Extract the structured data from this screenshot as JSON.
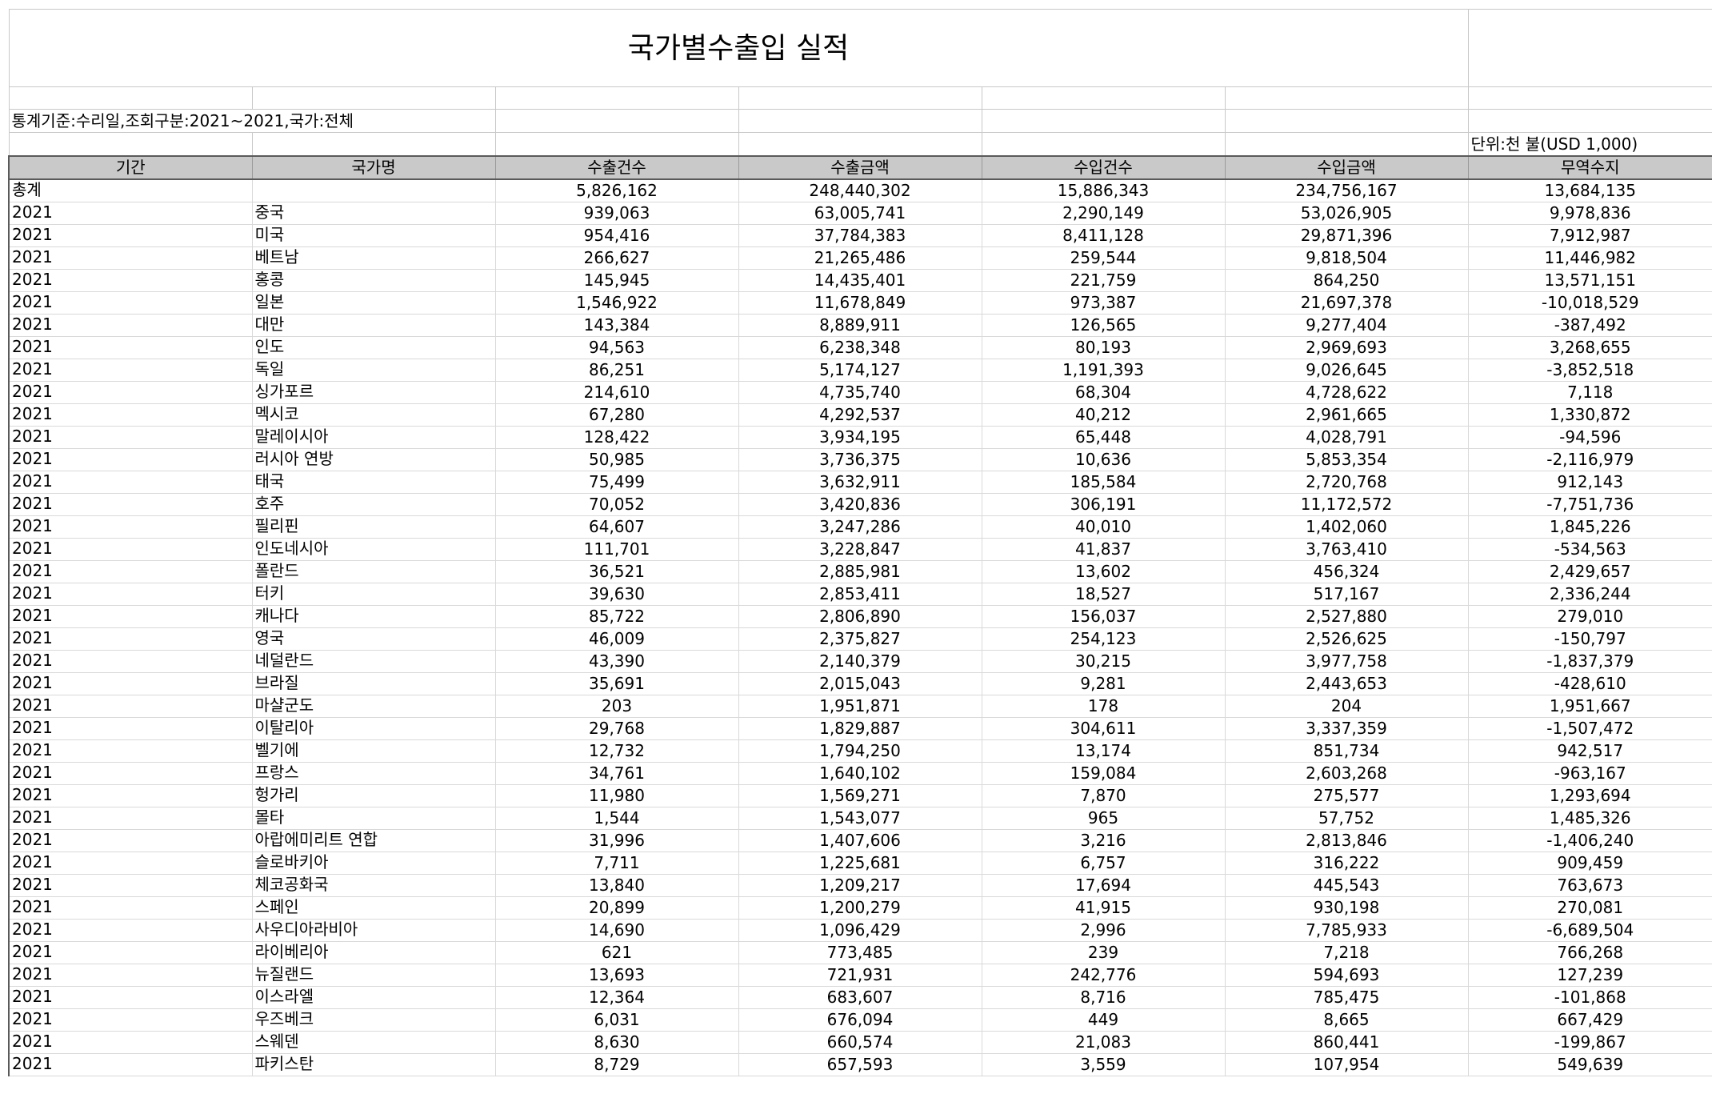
{
  "title": "국가별수출입 실적",
  "basis": "통계기준:수리일,조회구분:2021~2021,국가:전체",
  "unit": "단위:천 불(USD 1,000)",
  "columns": [
    "기간",
    "국가명",
    "수출건수",
    "수출금액",
    "수입건수",
    "수입금액",
    "무역수지"
  ],
  "rows": [
    [
      "총계",
      "",
      "5,826,162",
      "248,440,302",
      "15,886,343",
      "234,756,167",
      "13,684,135"
    ],
    [
      "2021",
      "중국",
      "939,063",
      "63,005,741",
      "2,290,149",
      "53,026,905",
      "9,978,836"
    ],
    [
      "2021",
      "미국",
      "954,416",
      "37,784,383",
      "8,411,128",
      "29,871,396",
      "7,912,987"
    ],
    [
      "2021",
      "베트남",
      "266,627",
      "21,265,486",
      "259,544",
      "9,818,504",
      "11,446,982"
    ],
    [
      "2021",
      "홍콩",
      "145,945",
      "14,435,401",
      "221,759",
      "864,250",
      "13,571,151"
    ],
    [
      "2021",
      "일본",
      "1,546,922",
      "11,678,849",
      "973,387",
      "21,697,378",
      "-10,018,529"
    ],
    [
      "2021",
      "대만",
      "143,384",
      "8,889,911",
      "126,565",
      "9,277,404",
      "-387,492"
    ],
    [
      "2021",
      "인도",
      "94,563",
      "6,238,348",
      "80,193",
      "2,969,693",
      "3,268,655"
    ],
    [
      "2021",
      "독일",
      "86,251",
      "5,174,127",
      "1,191,393",
      "9,026,645",
      "-3,852,518"
    ],
    [
      "2021",
      "싱가포르",
      "214,610",
      "4,735,740",
      "68,304",
      "4,728,622",
      "7,118"
    ],
    [
      "2021",
      "멕시코",
      "67,280",
      "4,292,537",
      "40,212",
      "2,961,665",
      "1,330,872"
    ],
    [
      "2021",
      "말레이시아",
      "128,422",
      "3,934,195",
      "65,448",
      "4,028,791",
      "-94,596"
    ],
    [
      "2021",
      "러시아 연방",
      "50,985",
      "3,736,375",
      "10,636",
      "5,853,354",
      "-2,116,979"
    ],
    [
      "2021",
      "태국",
      "75,499",
      "3,632,911",
      "185,584",
      "2,720,768",
      "912,143"
    ],
    [
      "2021",
      "호주",
      "70,052",
      "3,420,836",
      "306,191",
      "11,172,572",
      "-7,751,736"
    ],
    [
      "2021",
      "필리핀",
      "64,607",
      "3,247,286",
      "40,010",
      "1,402,060",
      "1,845,226"
    ],
    [
      "2021",
      "인도네시아",
      "111,701",
      "3,228,847",
      "41,837",
      "3,763,410",
      "-534,563"
    ],
    [
      "2021",
      "폴란드",
      "36,521",
      "2,885,981",
      "13,602",
      "456,324",
      "2,429,657"
    ],
    [
      "2021",
      "터키",
      "39,630",
      "2,853,411",
      "18,527",
      "517,167",
      "2,336,244"
    ],
    [
      "2021",
      "캐나다",
      "85,722",
      "2,806,890",
      "156,037",
      "2,527,880",
      "279,010"
    ],
    [
      "2021",
      "영국",
      "46,009",
      "2,375,827",
      "254,123",
      "2,526,625",
      "-150,797"
    ],
    [
      "2021",
      "네덜란드",
      "43,390",
      "2,140,379",
      "30,215",
      "3,977,758",
      "-1,837,379"
    ],
    [
      "2021",
      "브라질",
      "35,691",
      "2,015,043",
      "9,281",
      "2,443,653",
      "-428,610"
    ],
    [
      "2021",
      "마샬군도",
      "203",
      "1,951,871",
      "178",
      "204",
      "1,951,667"
    ],
    [
      "2021",
      "이탈리아",
      "29,768",
      "1,829,887",
      "304,611",
      "3,337,359",
      "-1,507,472"
    ],
    [
      "2021",
      "벨기에",
      "12,732",
      "1,794,250",
      "13,174",
      "851,734",
      "942,517"
    ],
    [
      "2021",
      "프랑스",
      "34,761",
      "1,640,102",
      "159,084",
      "2,603,268",
      "-963,167"
    ],
    [
      "2021",
      "헝가리",
      "11,980",
      "1,569,271",
      "7,870",
      "275,577",
      "1,293,694"
    ],
    [
      "2021",
      "몰타",
      "1,544",
      "1,543,077",
      "965",
      "57,752",
      "1,485,326"
    ],
    [
      "2021",
      "아랍에미리트 연합",
      "31,996",
      "1,407,606",
      "3,216",
      "2,813,846",
      "-1,406,240"
    ],
    [
      "2021",
      "슬로바키아",
      "7,711",
      "1,225,681",
      "6,757",
      "316,222",
      "909,459"
    ],
    [
      "2021",
      "체코공화국",
      "13,840",
      "1,209,217",
      "17,694",
      "445,543",
      "763,673"
    ],
    [
      "2021",
      "스페인",
      "20,899",
      "1,200,279",
      "41,915",
      "930,198",
      "270,081"
    ],
    [
      "2021",
      "사우디아라비아",
      "14,690",
      "1,096,429",
      "2,996",
      "7,785,933",
      "-6,689,504"
    ],
    [
      "2021",
      "라이베리아",
      "621",
      "773,485",
      "239",
      "7,218",
      "766,268"
    ],
    [
      "2021",
      "뉴질랜드",
      "13,693",
      "721,931",
      "242,776",
      "594,693",
      "127,239"
    ],
    [
      "2021",
      "이스라엘",
      "12,364",
      "683,607",
      "8,716",
      "785,475",
      "-101,868"
    ],
    [
      "2021",
      "우즈베크",
      "6,031",
      "676,094",
      "449",
      "8,665",
      "667,429"
    ],
    [
      "2021",
      "스웨덴",
      "8,630",
      "660,574",
      "21,083",
      "860,441",
      "-199,867"
    ],
    [
      "2021",
      "파키스탄",
      "8,729",
      "657,593",
      "3,559",
      "107,954",
      "549,639"
    ]
  ]
}
